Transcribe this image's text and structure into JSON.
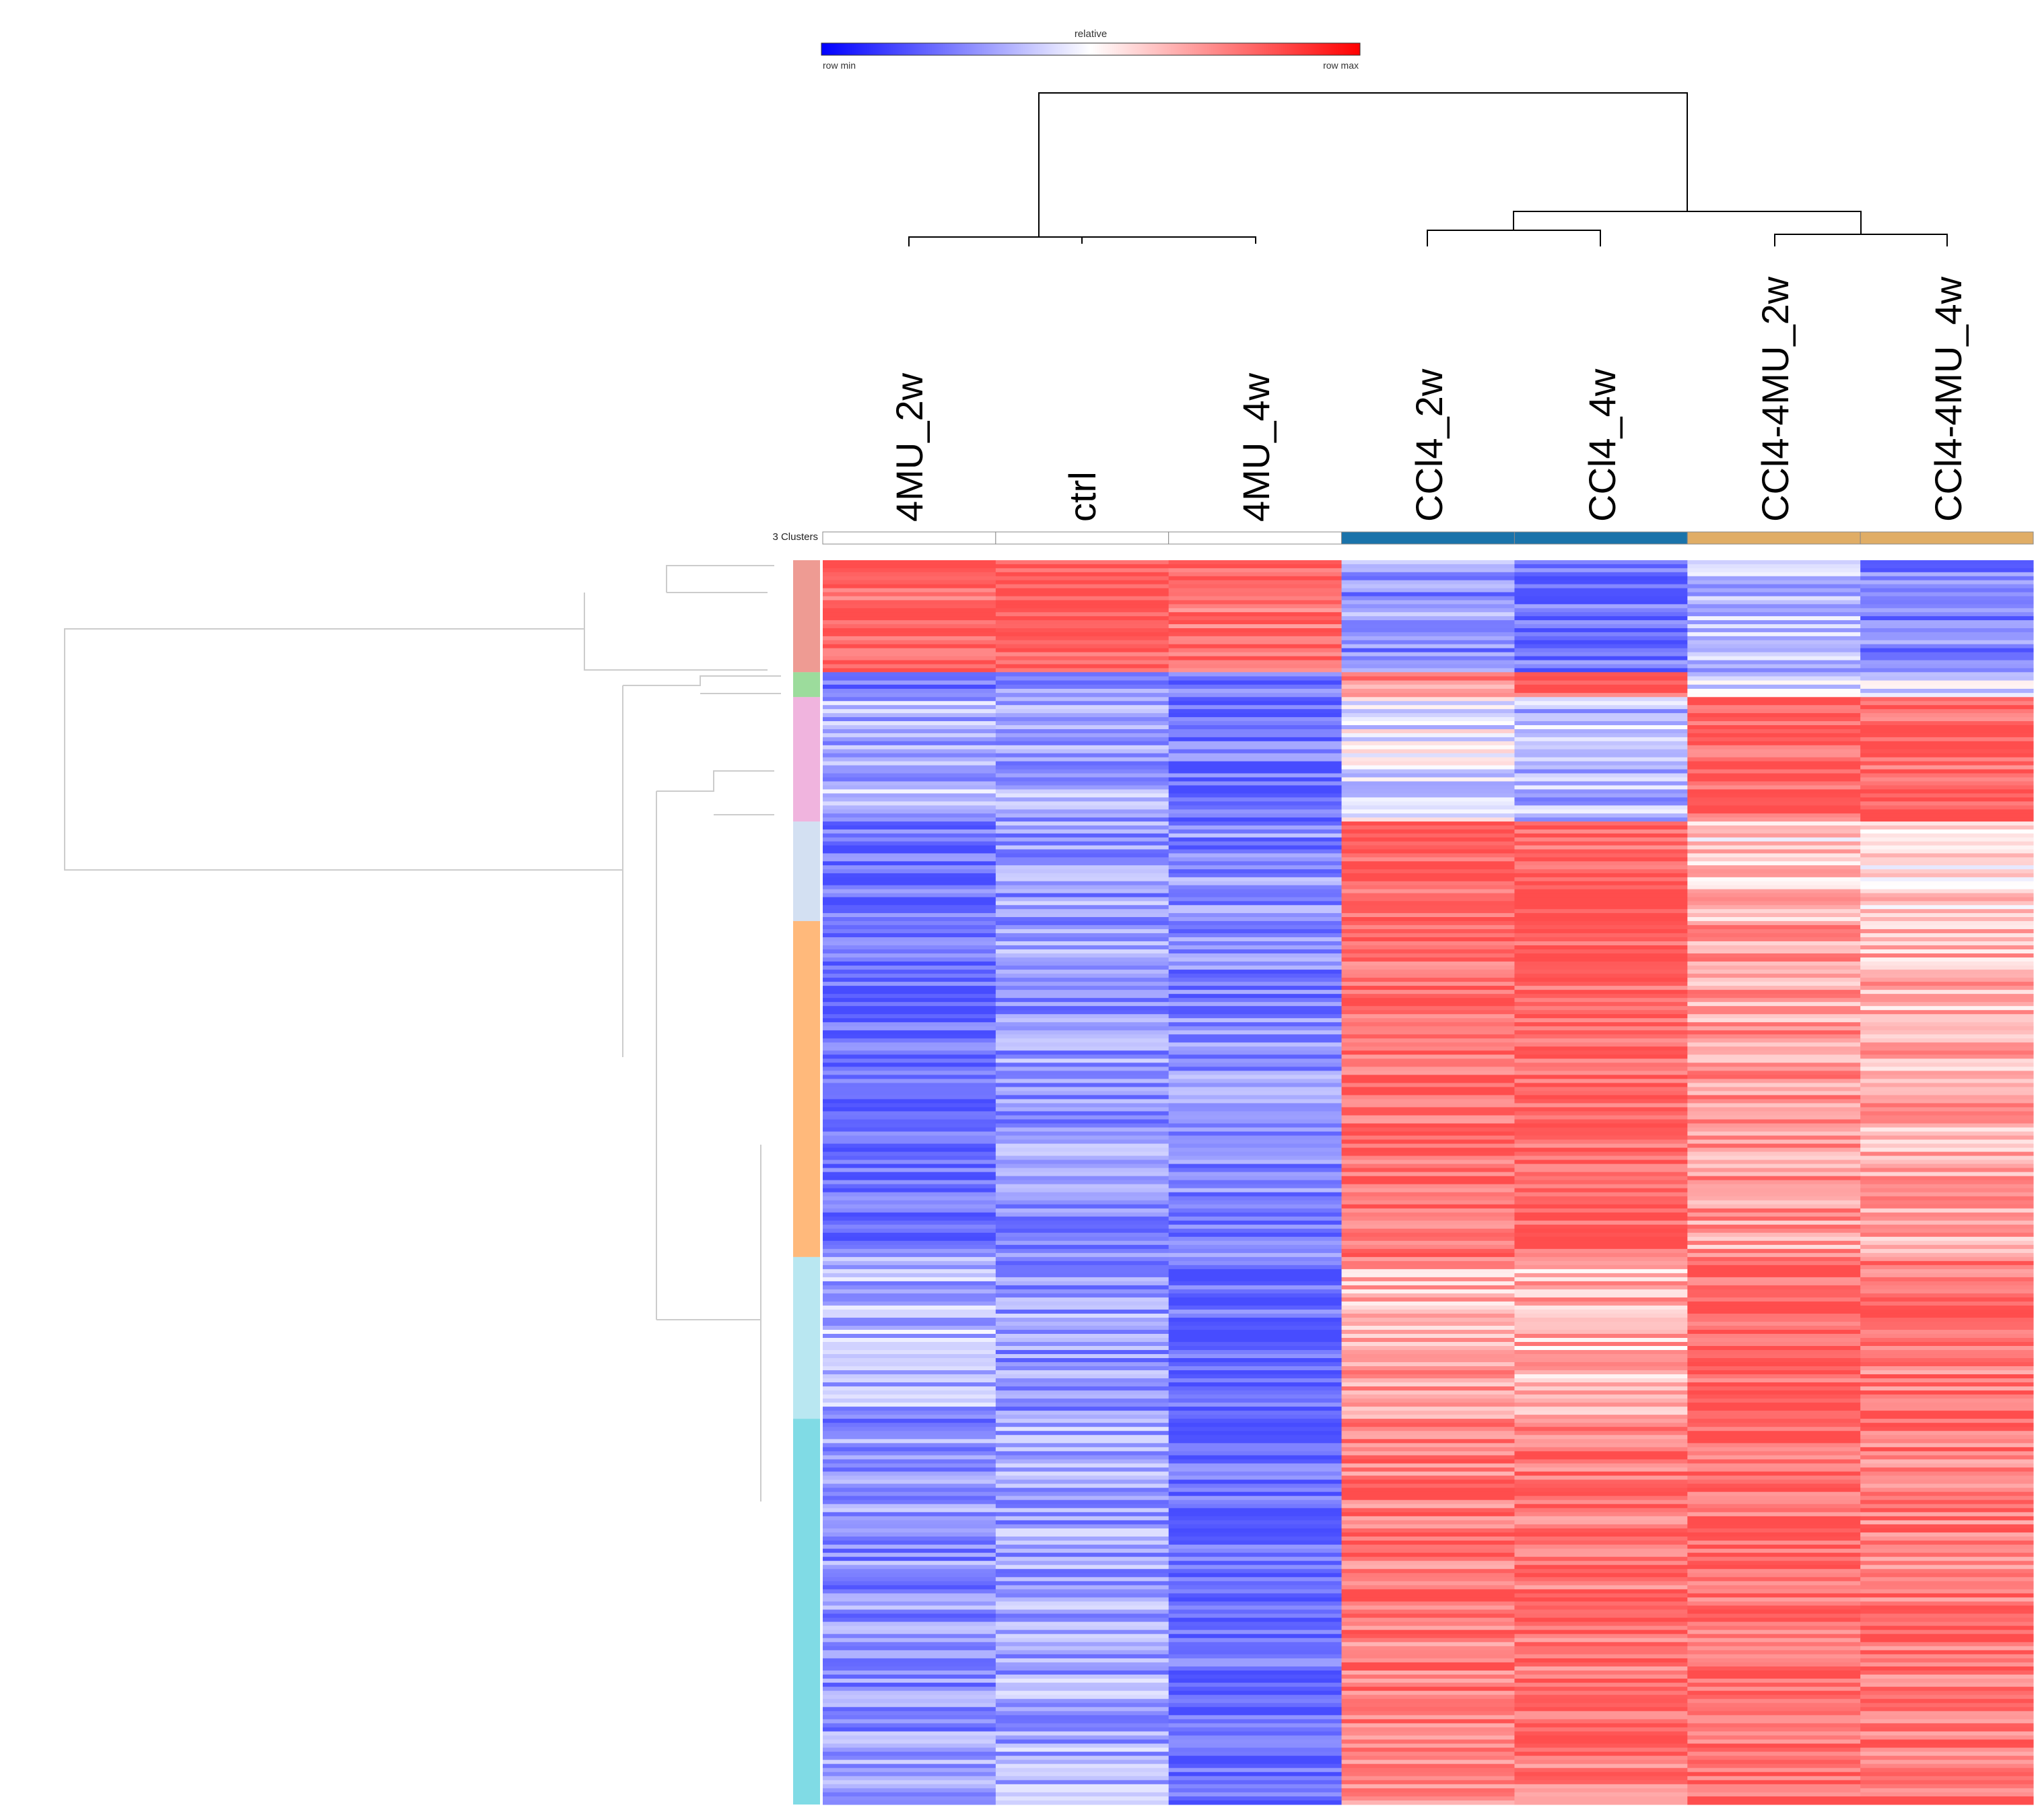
{
  "chart_data": {
    "type": "heatmap",
    "title": "",
    "colorbar": {
      "title": "relative",
      "min_label": "row min",
      "max_label": "row max",
      "colors": [
        "#0000ff",
        "#ffffff",
        "#ff0000"
      ]
    },
    "columns": [
      "4MU_2w",
      "ctrl",
      "4MU_4w",
      "CCl4_2w",
      "CCl4_4w",
      "CCl4-4MU_2w",
      "CCl4-4MU_4w"
    ],
    "cluster_annotation": {
      "label": "3 Clusters",
      "assignments": [
        1,
        1,
        1,
        2,
        2,
        3,
        3
      ],
      "colors": {
        "1": "#ffffff",
        "2": "#1a73aa",
        "3": "#e0ad66"
      }
    },
    "column_dendrogram": {
      "merges": [
        {
          "left": "ctrl",
          "right": "4MU_4w",
          "height": 0.02
        },
        {
          "left": "4MU_2w",
          "right": "ctrl+4MU_4w",
          "height": 0.05
        },
        {
          "left": "CCl4_2w",
          "right": "CCl4_4w",
          "height": 0.1
        },
        {
          "left": "CCl4-4MU_2w",
          "right": "CCl4-4MU_4w",
          "height": 0.1
        },
        {
          "left": "CCl4_2w+CCl4_4w",
          "right": "CCl4-4MU_2w+CCl4-4MU_4w",
          "height": 0.4
        },
        {
          "left": "4MU_2w+ctrl+4MU_4w",
          "right": "CCl4_2w+CCl4_4w+CCl4-4MU_2w+CCl4-4MU_4w",
          "height": 1.0
        }
      ]
    },
    "row_blocks": [
      {
        "fraction": 0.09,
        "leaf_color": "#e0483a",
        "values": [
          0.9,
          0.9,
          0.85,
          -0.6,
          -0.8,
          -0.4,
          -0.7
        ]
      },
      {
        "fraction": 0.02,
        "leaf_color": "#4bbf4b",
        "values": [
          -0.8,
          -0.7,
          -0.7,
          0.6,
          0.9,
          -0.3,
          -0.3
        ]
      },
      {
        "fraction": 0.1,
        "leaf_color": "#e377c2",
        "values": [
          -0.4,
          -0.5,
          -0.8,
          -0.1,
          -0.4,
          0.9,
          0.85
        ]
      },
      {
        "fraction": 0.08,
        "leaf_color": "#aec7e8",
        "values": [
          -0.8,
          -0.55,
          -0.65,
          0.85,
          0.9,
          0.3,
          0.2
        ]
      },
      {
        "fraction": 0.27,
        "leaf_color": "#ff7f0e",
        "values": [
          -0.85,
          -0.55,
          -0.65,
          0.85,
          0.9,
          0.55,
          0.45
        ]
      },
      {
        "fraction": 0.13,
        "leaf_color": "#7fd4e6",
        "values": [
          -0.4,
          -0.55,
          -0.85,
          0.45,
          0.4,
          0.9,
          0.75
        ]
      },
      {
        "fraction": 0.31,
        "leaf_color": "#17becf",
        "values": [
          -0.6,
          -0.5,
          -0.85,
          0.75,
          0.8,
          0.85,
          0.75
        ]
      }
    ]
  }
}
